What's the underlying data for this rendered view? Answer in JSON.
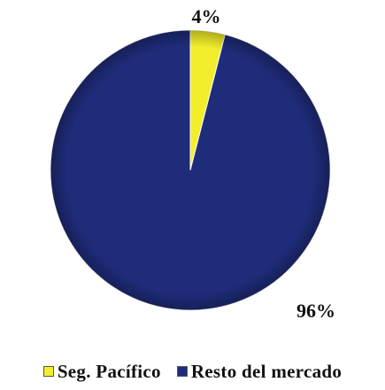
{
  "chart_data": {
    "type": "pie",
    "title": "",
    "start_angle_deg": 0,
    "direction": "clockwise",
    "legend_position": "bottom",
    "slices": [
      {
        "name": "Seg. Pacífico",
        "value": 4,
        "label": "4%",
        "color": "#f2ee2c"
      },
      {
        "name": "Resto del mercado",
        "value": 96,
        "label": "96%",
        "color": "#1f2c7a"
      }
    ]
  }
}
